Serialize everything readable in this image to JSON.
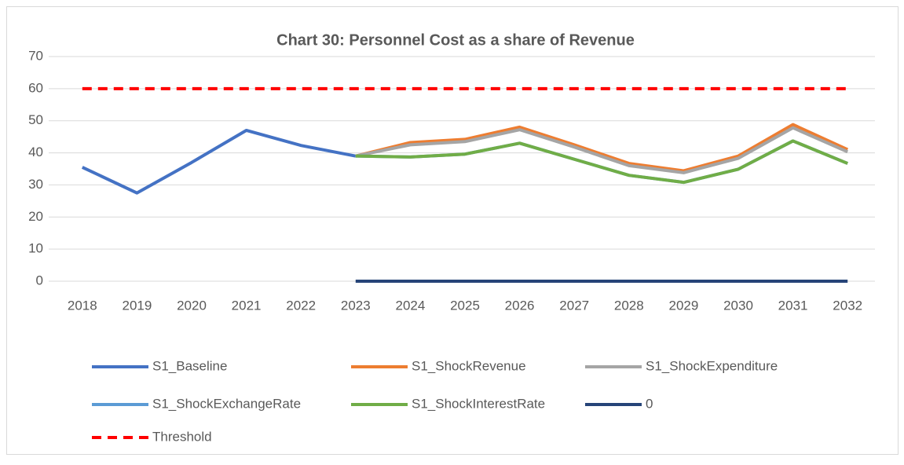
{
  "chart_data": {
    "type": "line",
    "title": "Chart 30: Personnel Cost as a share of Revenue",
    "categories": [
      "2018",
      "2019",
      "2020",
      "2021",
      "2022",
      "2023",
      "2024",
      "2025",
      "2026",
      "2027",
      "2028",
      "2029",
      "2030",
      "2031",
      "2032"
    ],
    "series": [
      {
        "name": "S1_Baseline",
        "color": "#4472c4",
        "values": [
          35.5,
          27.5,
          37,
          47,
          42.3,
          39,
          null,
          null,
          null,
          null,
          null,
          null,
          null,
          null,
          null
        ]
      },
      {
        "name": "S1_ShockRevenue",
        "color": "#ed7d31",
        "values": [
          null,
          null,
          null,
          null,
          null,
          39,
          43.2,
          44.2,
          48,
          42.5,
          36.7,
          34.4,
          39,
          48.8,
          41
        ]
      },
      {
        "name": "S1_ShockExpenditure",
        "color": "#a5a5a5",
        "values": [
          null,
          null,
          null,
          null,
          null,
          39,
          42.5,
          43.5,
          47.2,
          41.8,
          36,
          33.8,
          38.3,
          47.8,
          40.3
        ]
      },
      {
        "name": "S1_ShockExchangeRate",
        "color": "#5b9bd5",
        "values": [
          null,
          null,
          null,
          null,
          null,
          39,
          38.7,
          39.6,
          43,
          38,
          33,
          30.8,
          34.9,
          43.7,
          36.7
        ]
      },
      {
        "name": "S1_ShockInterestRate",
        "color": "#70ad47",
        "values": [
          null,
          null,
          null,
          null,
          null,
          39,
          38.7,
          39.6,
          43,
          38,
          33,
          30.8,
          34.9,
          43.7,
          36.7
        ]
      },
      {
        "name": "0",
        "color": "#264478",
        "values": [
          null,
          null,
          null,
          null,
          null,
          0,
          0,
          0,
          0,
          0,
          0,
          0,
          0,
          0,
          0
        ]
      },
      {
        "name": "Threshold",
        "color": "#ff0000",
        "dashed": true,
        "values": [
          60,
          60,
          60,
          60,
          60,
          60,
          60,
          60,
          60,
          60,
          60,
          60,
          60,
          60,
          60
        ]
      }
    ],
    "ylim": [
      0,
      70
    ],
    "yticks": [
      0,
      10,
      20,
      30,
      40,
      50,
      60,
      70
    ],
    "grid": true,
    "legend": "bottom"
  }
}
